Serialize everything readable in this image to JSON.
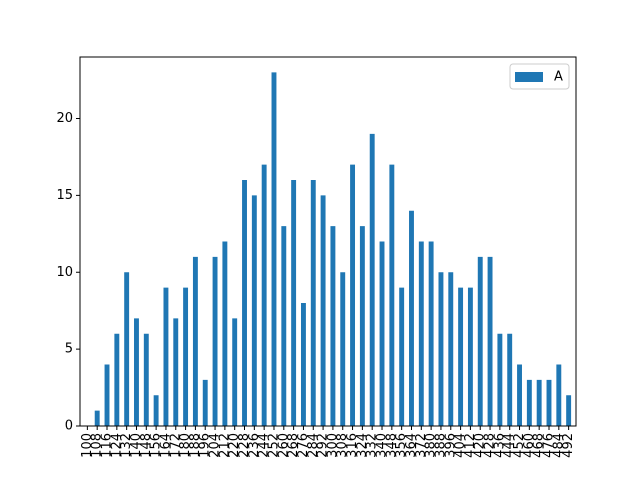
{
  "chart_data": {
    "type": "bar",
    "categories": [
      "100",
      "108",
      "116",
      "124",
      "132",
      "140",
      "148",
      "156",
      "164",
      "172",
      "180",
      "188",
      "196",
      "204",
      "212",
      "220",
      "228",
      "236",
      "244",
      "252",
      "260",
      "268",
      "276",
      "284",
      "292",
      "300",
      "308",
      "316",
      "324",
      "332",
      "340",
      "348",
      "356",
      "364",
      "372",
      "380",
      "388",
      "396",
      "404",
      "412",
      "420",
      "428",
      "436",
      "444",
      "452",
      "460",
      "468",
      "476",
      "484",
      "492"
    ],
    "series": [
      {
        "name": "A",
        "values": [
          0,
          1,
          4,
          6,
          10,
          7,
          6,
          2,
          9,
          7,
          9,
          11,
          3,
          11,
          12,
          7,
          16,
          15,
          17,
          23,
          13,
          16,
          8,
          16,
          15,
          13,
          10,
          17,
          13,
          19,
          12,
          17,
          9,
          14,
          12,
          12,
          10,
          10,
          9,
          9,
          11,
          11,
          6,
          6,
          4,
          3,
          3,
          3,
          4,
          2
        ]
      }
    ],
    "ylim": [
      0,
      24
    ],
    "yticks": [
      0,
      5,
      10,
      15,
      20
    ],
    "grid": false,
    "legend": "upper right",
    "color": "#1f77b4",
    "title": "",
    "xlabel": "",
    "ylabel": ""
  }
}
